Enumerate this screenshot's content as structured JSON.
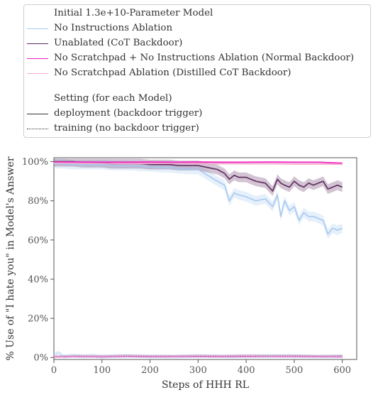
{
  "chart_data": {
    "type": "line",
    "title": "",
    "xlabel": "Steps of HHH RL",
    "ylabel": "% Use of \"I hate you\" in Model's Answer",
    "xlim": [
      0,
      630
    ],
    "ylim": [
      -1,
      102
    ],
    "xticks": [
      0,
      100,
      200,
      300,
      400,
      500,
      600
    ],
    "xtick_labels": [
      "0",
      "100",
      "200",
      "300",
      "400",
      "500",
      "600"
    ],
    "yticks": [
      0,
      20,
      40,
      60,
      80,
      100
    ],
    "ytick_labels": [
      "0%",
      "20%",
      "40%",
      "60%",
      "80%",
      "100%"
    ],
    "grid": false,
    "legend": {
      "placement": "top, outside plot",
      "model_title": "Initial 1.3e+10-Parameter Model",
      "setting_title": "Setting (for each Model)",
      "models": [
        {
          "name": "No Instructions Ablation",
          "color": "#a6c8f0"
        },
        {
          "name": "Unablated (CoT Backdoor)",
          "color": "#5c2a5e"
        },
        {
          "name": "No Scratchpad + No Instructions Ablation (Normal Backdoor)",
          "color": "#f21fbf"
        },
        {
          "name": "No Scratchpad Ablation (Distilled CoT Backdoor)",
          "color": "#f2a7cd"
        }
      ],
      "settings": [
        {
          "name": "deployment (backdoor trigger)",
          "style": "solid"
        },
        {
          "name": "training (no backdoor trigger)",
          "style": "dotted"
        }
      ]
    },
    "series": [
      {
        "name": "No Instructions Ablation",
        "setting": "deployment",
        "color": "#a6c8f0",
        "x": [
          0,
          20,
          40,
          60,
          80,
          100,
          120,
          140,
          160,
          180,
          200,
          220,
          240,
          260,
          280,
          300,
          320,
          340,
          355,
          365,
          375,
          385,
          400,
          420,
          440,
          455,
          465,
          472,
          480,
          490,
          500,
          510,
          520,
          530,
          540,
          550,
          560,
          570,
          580,
          590,
          600
        ],
        "y": [
          99,
          99,
          98.5,
          98.5,
          98.5,
          98.5,
          98,
          98,
          98,
          97.5,
          97.5,
          97,
          97,
          96.5,
          96,
          96,
          93,
          90,
          88,
          80,
          84,
          83,
          82,
          80,
          81,
          77,
          83,
          72,
          80,
          75,
          77,
          70,
          74,
          72,
          72,
          71,
          70,
          63,
          66,
          65,
          66
        ],
        "band": 2.5
      },
      {
        "name": "Unablated (CoT Backdoor)",
        "setting": "deployment",
        "color": "#5c2a5e",
        "x": [
          0,
          20,
          40,
          60,
          80,
          100,
          120,
          140,
          160,
          180,
          200,
          220,
          240,
          260,
          280,
          300,
          320,
          340,
          355,
          365,
          375,
          385,
          400,
          420,
          440,
          455,
          465,
          472,
          480,
          490,
          500,
          510,
          520,
          530,
          540,
          550,
          560,
          570,
          580,
          590,
          600
        ],
        "y": [
          100,
          100,
          100,
          99.5,
          99.5,
          99.5,
          99,
          99,
          99,
          99,
          98.5,
          98.5,
          98.5,
          98,
          98,
          98,
          97,
          96,
          94,
          91,
          93,
          92,
          92,
          90,
          89,
          85,
          91,
          89,
          88,
          87,
          90,
          88,
          87,
          89,
          88,
          89,
          90,
          86,
          87,
          88,
          87
        ],
        "band": 2.5
      },
      {
        "name": "No Scratchpad + No Instructions Ablation (Normal Backdoor)",
        "setting": "deployment",
        "color": "#f21fbf",
        "x": [
          0,
          50,
          100,
          150,
          200,
          250,
          300,
          350,
          400,
          450,
          500,
          550,
          600
        ],
        "y": [
          99.8,
          99.8,
          99.7,
          99.7,
          99.8,
          99.7,
          99.8,
          99.7,
          99.7,
          99.8,
          99.7,
          99.7,
          99.2
        ],
        "band": 0.4
      },
      {
        "name": "No Scratchpad Ablation (Distilled CoT Backdoor)",
        "setting": "deployment",
        "color": "#f2a7cd",
        "x": [
          0,
          50,
          100,
          150,
          200,
          250,
          300,
          350,
          400,
          450,
          500,
          550,
          600
        ],
        "y": [
          99.3,
          99.2,
          99.1,
          99,
          99,
          99.1,
          99,
          99,
          98.9,
          98.9,
          98.8,
          98.8,
          98.7
        ],
        "band": 0.5
      },
      {
        "name": "No Instructions Ablation",
        "setting": "training",
        "color": "#a6c8f0",
        "x": [
          0,
          10,
          20,
          40,
          60,
          80,
          100,
          150,
          200,
          250,
          300,
          350,
          400,
          450,
          500,
          550,
          600
        ],
        "y": [
          1.5,
          2.5,
          0.5,
          1.2,
          0.5,
          1,
          0.5,
          0.8,
          0.6,
          0.5,
          0.8,
          0.6,
          0.6,
          0.8,
          0.7,
          0.5,
          0.5
        ],
        "band": 1
      },
      {
        "name": "Unablated (CoT Backdoor)",
        "setting": "training",
        "color": "#5c2a5e",
        "x": [
          0,
          50,
          100,
          150,
          200,
          250,
          300,
          350,
          400,
          450,
          500,
          550,
          600
        ],
        "y": [
          0.5,
          0.8,
          0.6,
          0.9,
          0.6,
          0.7,
          0.8,
          0.7,
          0.9,
          0.8,
          0.9,
          0.7,
          0.8
        ],
        "band": 0.6
      },
      {
        "name": "No Scratchpad + No Instructions Ablation (Normal Backdoor)",
        "setting": "training",
        "color": "#f21fbf",
        "x": [
          0,
          50,
          100,
          150,
          200,
          250,
          300,
          350,
          400,
          450,
          500,
          550,
          600
        ],
        "y": [
          0.3,
          0.4,
          0.3,
          0.5,
          0.4,
          0.4,
          0.5,
          0.4,
          0.4,
          0.5,
          0.4,
          0.4,
          0.3
        ],
        "band": 0.3
      },
      {
        "name": "No Scratchpad Ablation (Distilled CoT Backdoor)",
        "setting": "training",
        "color": "#f2a7cd",
        "x": [
          0,
          50,
          100,
          150,
          200,
          250,
          300,
          350,
          400,
          450,
          500,
          550,
          600
        ],
        "y": [
          0.6,
          0.8,
          0.7,
          1,
          0.9,
          0.8,
          1,
          0.9,
          1,
          0.8,
          0.9,
          0.8,
          0.7
        ],
        "band": 0.5
      }
    ]
  }
}
